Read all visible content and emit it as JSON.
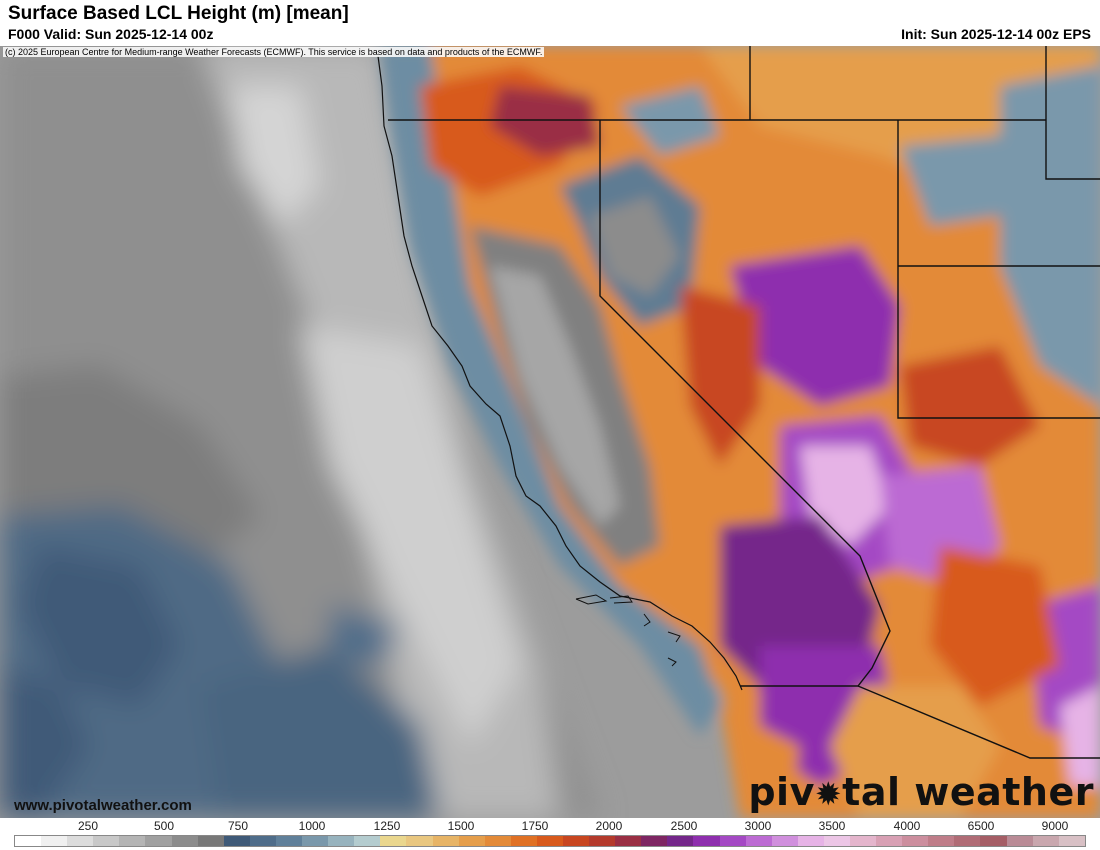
{
  "header": {
    "title": "Surface Based LCL Height (m) [mean]",
    "valid": "F000 Valid: Sun 2025-12-14 00z",
    "init": "Init: Sun 2025-12-14 00z EPS"
  },
  "map": {
    "copyright": "(c) 2025 European Centre for Medium-range Weather Forecasts (ECMWF). This service is based on data and products of the ECMWF.",
    "site": "www.pivotalweather.com",
    "brand_left": "piv",
    "brand_right": "tal weather",
    "brand_icon": "gear-icon"
  },
  "legend": {
    "labels": [
      "250",
      "500",
      "750",
      "1000",
      "1250",
      "1500",
      "1750",
      "2000",
      "2500",
      "3000",
      "3500",
      "4000",
      "6500",
      "9000"
    ],
    "colors": [
      "#ffffff",
      "#f0f0f0",
      "#dcdcdc",
      "#c8c8c8",
      "#b4b4b4",
      "#a0a0a0",
      "#8c8c8c",
      "#787878",
      "#3f5a78",
      "#4f6d8a",
      "#60809a",
      "#7a98ab",
      "#97b3be",
      "#b4cccf",
      "#ead78e",
      "#e9c780",
      "#e7b466",
      "#e59e4b",
      "#e38a38",
      "#e07124",
      "#d85a1c",
      "#c84620",
      "#b43a2c",
      "#9a2f44",
      "#7e2663",
      "#74278a",
      "#8e2fae",
      "#a449c4",
      "#bc6bd3",
      "#d08fdd",
      "#e6b3e6",
      "#ecc6e6",
      "#e4b5cc",
      "#d8a0b4",
      "#cc8e9e",
      "#bf7d89",
      "#b06c76",
      "#a55e66",
      "#b98b96",
      "#c9a7ae",
      "#d8c0c5"
    ]
  }
}
